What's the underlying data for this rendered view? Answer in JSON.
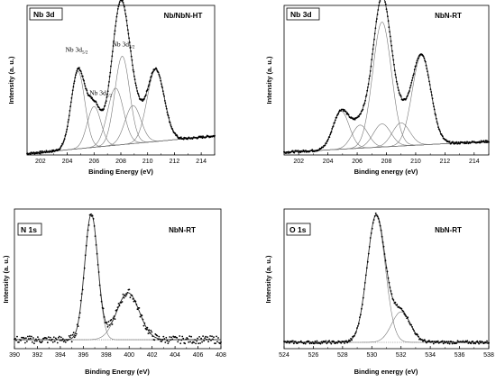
{
  "chart_data": [
    {
      "type": "line",
      "panel_tag": "Nb 3d",
      "sample_label": "Nb/NbN-HT",
      "xlabel": "Binding Energy (eV)",
      "ylabel": "Intensity (a. u.)",
      "xlim": [
        201,
        215
      ],
      "xticks": [
        202,
        204,
        206,
        208,
        210,
        212,
        214
      ],
      "ylim": [
        0,
        1.1
      ],
      "background": {
        "x": [
          201,
          215
        ],
        "y": [
          0.01,
          0.14
        ]
      },
      "peaks": [
        {
          "center": 204.8,
          "height": 0.57,
          "fwhm": 1.2
        },
        {
          "center": 206.0,
          "height": 0.3,
          "fwhm": 1.2
        },
        {
          "center": 207.6,
          "height": 0.42,
          "fwhm": 1.4
        },
        {
          "center": 208.1,
          "height": 0.65,
          "fwhm": 1.3
        },
        {
          "center": 208.9,
          "height": 0.28,
          "fwhm": 1.4
        },
        {
          "center": 210.6,
          "height": 0.53,
          "fwhm": 1.5
        }
      ],
      "annotations": [
        {
          "text": "Nb 3d",
          "sub": "5/2",
          "x": 204.7,
          "y": 0.76
        },
        {
          "text": "Nb 3d",
          "sub": "5/2",
          "x": 206.5,
          "y": 0.44
        },
        {
          "text": "Nb 3d",
          "sub": "3/2",
          "x": 208.2,
          "y": 0.8
        }
      ]
    },
    {
      "type": "line",
      "panel_tag": "Nb 3d",
      "sample_label": "NbN-RT",
      "xlabel": "Binding energy (eV)",
      "ylabel": "Intensity (a. u.)",
      "xlim": [
        201,
        215
      ],
      "xticks": [
        202,
        204,
        206,
        208,
        210,
        212,
        214
      ],
      "ylim": [
        0,
        1.1
      ],
      "background": {
        "x": [
          201,
          215
        ],
        "y": [
          0.02,
          0.1
        ]
      },
      "peaks": [
        {
          "center": 204.9,
          "height": 0.28,
          "fwhm": 1.3
        },
        {
          "center": 206.2,
          "height": 0.17,
          "fwhm": 1.3
        },
        {
          "center": 207.7,
          "height": 0.92,
          "fwhm": 1.5
        },
        {
          "center": 207.7,
          "height": 0.17,
          "fwhm": 1.4
        },
        {
          "center": 209.0,
          "height": 0.17,
          "fwhm": 1.4
        },
        {
          "center": 210.4,
          "height": 0.66,
          "fwhm": 1.5
        }
      ],
      "annotations": []
    },
    {
      "type": "line",
      "panel_tag": "N 1s",
      "sample_label": "NbN-RT",
      "xlabel": "Binding Energy (eV)",
      "ylabel": "Intensity (a. u.)",
      "xlim": [
        390,
        408
      ],
      "xticks": [
        390,
        392,
        394,
        396,
        398,
        400,
        402,
        404,
        406,
        408
      ],
      "ylim": [
        0,
        1.1
      ],
      "background": {
        "x": [
          390,
          408
        ],
        "y": [
          0.07,
          0.07
        ]
      },
      "peaks": [
        {
          "center": 396.7,
          "height": 0.99,
          "fwhm": 1.35
        },
        {
          "center": 399.9,
          "height": 0.37,
          "fwhm": 2.3
        }
      ],
      "annotations": []
    },
    {
      "type": "line",
      "panel_tag": "O 1s",
      "sample_label": "NbN-RT",
      "xlabel": "Binding energy (eV)",
      "ylabel": "Intensity (a. u.)",
      "xlim": [
        524,
        538
      ],
      "xticks": [
        524,
        526,
        528,
        530,
        532,
        534,
        536,
        538
      ],
      "ylim": [
        0,
        1.1
      ],
      "background": {
        "x": [
          524,
          538
        ],
        "y": [
          0.05,
          0.05
        ]
      },
      "peaks": [
        {
          "center": 530.3,
          "height": 1.0,
          "fwhm": 1.45
        },
        {
          "center": 532.0,
          "height": 0.24,
          "fwhm": 1.5
        }
      ],
      "annotations": []
    }
  ]
}
